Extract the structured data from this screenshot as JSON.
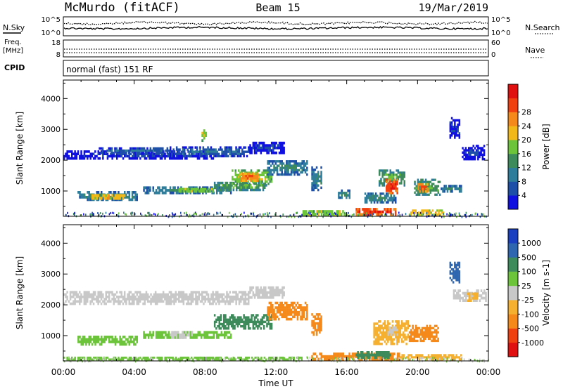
{
  "header": {
    "station": "McMurdo (fitACF)",
    "beam": "Beam 15",
    "date": "19/Mar/2019"
  },
  "noise_panel": {
    "left_label": "N.Sky",
    "right_label": "N.Search",
    "ticks_left": [
      "10^5",
      "10^0"
    ],
    "ticks_right": [
      "10^5",
      "10^0"
    ]
  },
  "freq_panel": {
    "left_label_line1": "Freq.",
    "left_label_line2": "[MHz]",
    "left_ticks": [
      "18",
      "8"
    ],
    "right_label": "Nave",
    "right_ticks": [
      "60",
      "0"
    ]
  },
  "cpid": {
    "label": "CPID",
    "value": "normal (fast) 151 RF"
  },
  "xaxis": {
    "label": "Time UT",
    "ticks": [
      "00:00",
      "04:00",
      "08:00",
      "12:00",
      "16:00",
      "20:00",
      "00:00"
    ]
  },
  "colors": {
    "power": [
      "#1010e0",
      "#1e4fa8",
      "#2e7d9a",
      "#3d8a5a",
      "#6cc43a",
      "#f2b818",
      "#f58a1a",
      "#f04010",
      "#e01010"
    ],
    "velocity": [
      "#e01010",
      "#f04010",
      "#f58a1a",
      "#f5b030",
      "#c8c8c8",
      "#6cc43a",
      "#3d8a5a",
      "#2e66b0",
      "#1a3fc0"
    ]
  },
  "chart_data": [
    {
      "type": "heatmap",
      "name": "Power",
      "ylabel": "Slant Range [km]",
      "xlabel": "",
      "xlim": [
        0,
        24
      ],
      "ylim": [
        180,
        4600
      ],
      "yticks": [
        "1000",
        "2000",
        "3000",
        "4000"
      ],
      "colorbar_label": "Power [dB]",
      "colorbar_ticks": [
        "4",
        "8",
        "12",
        "16",
        "20",
        "24",
        "28"
      ],
      "bands": [
        {
          "t0": 0.0,
          "t1": 8.5,
          "r0": 2020,
          "r1": 2320,
          "level": 1
        },
        {
          "t0": 2.0,
          "t1": 6.0,
          "r0": 2200,
          "r1": 2420,
          "level": 2
        },
        {
          "t0": 6.0,
          "t1": 10.5,
          "r0": 2100,
          "r1": 2450,
          "level": 2
        },
        {
          "t0": 10.5,
          "t1": 12.5,
          "r0": 2200,
          "r1": 2600,
          "level": 1
        },
        {
          "t0": 0.8,
          "t1": 4.2,
          "r0": 680,
          "r1": 1000,
          "level": 3
        },
        {
          "t0": 1.5,
          "t1": 3.5,
          "r0": 720,
          "r1": 900,
          "level": 6
        },
        {
          "t0": 4.5,
          "t1": 9.5,
          "r0": 900,
          "r1": 1150,
          "level": 3
        },
        {
          "t0": 6.5,
          "t1": 8.5,
          "r0": 950,
          "r1": 1100,
          "level": 5
        },
        {
          "t0": 8.5,
          "t1": 11.5,
          "r0": 1000,
          "r1": 1300,
          "level": 4
        },
        {
          "t0": 9.5,
          "t1": 11.8,
          "r0": 1200,
          "r1": 1700,
          "level": 5
        },
        {
          "t0": 10.0,
          "t1": 11.0,
          "r0": 1300,
          "r1": 1600,
          "level": 7
        },
        {
          "t0": 11.5,
          "t1": 13.8,
          "r0": 1500,
          "r1": 2000,
          "level": 3
        },
        {
          "t0": 14.0,
          "t1": 14.6,
          "r0": 1000,
          "r1": 1800,
          "level": 3
        },
        {
          "t0": 15.5,
          "t1": 16.2,
          "r0": 750,
          "r1": 1050,
          "level": 3
        },
        {
          "t0": 17.0,
          "t1": 18.8,
          "r0": 600,
          "r1": 950,
          "level": 3
        },
        {
          "t0": 17.8,
          "t1": 19.3,
          "r0": 1150,
          "r1": 1700,
          "level": 4
        },
        {
          "t0": 18.2,
          "t1": 18.9,
          "r0": 900,
          "r1": 1400,
          "level": 8
        },
        {
          "t0": 19.8,
          "t1": 21.3,
          "r0": 850,
          "r1": 1400,
          "level": 4
        },
        {
          "t0": 20.0,
          "t1": 20.6,
          "r0": 950,
          "r1": 1250,
          "level": 7
        },
        {
          "t0": 21.3,
          "t1": 22.5,
          "r0": 950,
          "r1": 1200,
          "level": 3
        },
        {
          "t0": 22.5,
          "t1": 23.8,
          "r0": 2000,
          "r1": 2500,
          "level": 1
        },
        {
          "t0": 21.8,
          "t1": 22.4,
          "r0": 2700,
          "r1": 3400,
          "level": 1
        },
        {
          "t0": 19.5,
          "t1": 21.5,
          "r0": 200,
          "r1": 400,
          "level": 6
        },
        {
          "t0": 16.5,
          "t1": 18.8,
          "r0": 200,
          "r1": 450,
          "level": 8
        },
        {
          "t0": 13.5,
          "t1": 16.0,
          "r0": 200,
          "r1": 380,
          "level": 5
        },
        {
          "t0": 7.8,
          "t1": 8.1,
          "r0": 2600,
          "r1": 3000,
          "level": 5
        }
      ]
    },
    {
      "type": "heatmap",
      "name": "Velocity",
      "ylabel": "Slant Range [km]",
      "xlabel": "Time UT",
      "xlim": [
        0,
        24
      ],
      "ylim": [
        180,
        4600
      ],
      "yticks": [
        "1000",
        "2000",
        "3000",
        "4000"
      ],
      "colorbar_label": "Velocity [m s-1]",
      "colorbar_ticks": [
        "1000",
        "500",
        "100",
        "25",
        "-25",
        "-100",
        "-500",
        "-1000"
      ],
      "bands": [
        {
          "t0": 0.0,
          "t1": 10.5,
          "r0": 2000,
          "r1": 2450,
          "level": 4
        },
        {
          "t0": 10.5,
          "t1": 12.5,
          "r0": 2200,
          "r1": 2600,
          "level": 4
        },
        {
          "t0": 0.8,
          "t1": 4.2,
          "r0": 680,
          "r1": 1000,
          "level": 5
        },
        {
          "t0": 4.5,
          "t1": 9.5,
          "r0": 900,
          "r1": 1150,
          "level": 5
        },
        {
          "t0": 6.0,
          "t1": 7.3,
          "r0": 900,
          "r1": 1150,
          "level": 4
        },
        {
          "t0": 8.5,
          "t1": 11.8,
          "r0": 1200,
          "r1": 1700,
          "level": 6
        },
        {
          "t0": 11.5,
          "t1": 13.8,
          "r0": 1500,
          "r1": 2100,
          "level": 2
        },
        {
          "t0": 14.0,
          "t1": 14.6,
          "r0": 1000,
          "r1": 1800,
          "level": 2
        },
        {
          "t0": 17.5,
          "t1": 19.5,
          "r0": 700,
          "r1": 1500,
          "level": 3
        },
        {
          "t0": 19.5,
          "t1": 21.2,
          "r0": 800,
          "r1": 1350,
          "level": 2
        },
        {
          "t0": 18.3,
          "t1": 18.9,
          "r0": 1000,
          "r1": 1300,
          "level": 4
        },
        {
          "t0": 22.0,
          "t1": 23.9,
          "r0": 2100,
          "r1": 2500,
          "level": 4
        },
        {
          "t0": 22.8,
          "t1": 23.5,
          "r0": 2100,
          "r1": 2400,
          "level": 3
        },
        {
          "t0": 21.8,
          "t1": 22.4,
          "r0": 2700,
          "r1": 3400,
          "level": 7
        },
        {
          "t0": 14.0,
          "t1": 19.0,
          "r0": 200,
          "r1": 450,
          "level": 2
        },
        {
          "t0": 19.0,
          "t1": 22.5,
          "r0": 200,
          "r1": 400,
          "level": 3
        },
        {
          "t0": 16.5,
          "t1": 18.5,
          "r0": 250,
          "r1": 500,
          "level": 6
        },
        {
          "t0": 0.0,
          "t1": 13.5,
          "r0": 200,
          "r1": 320,
          "level": 5
        }
      ]
    }
  ]
}
